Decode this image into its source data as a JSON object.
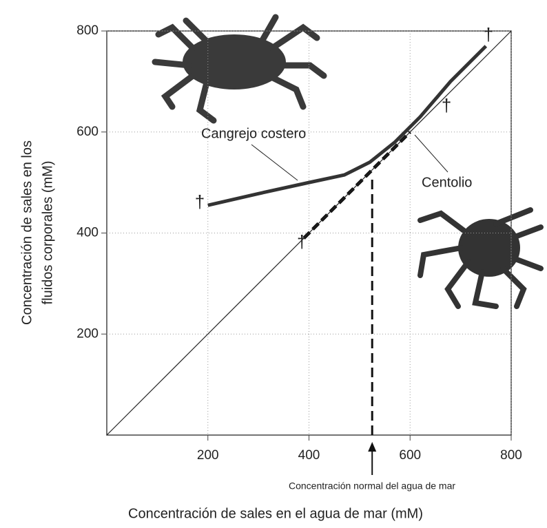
{
  "chart_data": {
    "type": "line",
    "xlabel": "Concentración de sales en el agua de mar (mM)",
    "ylabel": [
      "Concentración de sales en los",
      "fluidos corporales (mM)"
    ],
    "xlim": [
      0,
      800
    ],
    "ylim": [
      0,
      800
    ],
    "xticks": [
      200,
      400,
      600,
      800
    ],
    "yticks": [
      200,
      400,
      600,
      800
    ],
    "grid": true,
    "series": [
      {
        "name": "Cangrejo costero",
        "color": "#333333",
        "style": "solid",
        "width": 5,
        "x": [
          200,
          300,
          400,
          470,
          520,
          570,
          620,
          680,
          750
        ],
        "values": [
          455,
          478,
          500,
          515,
          540,
          580,
          630,
          700,
          770
        ]
      },
      {
        "name": "Centolio",
        "color": "#111111",
        "style": "dashed",
        "width": 5,
        "x": [
          390,
          600
        ],
        "values": [
          390,
          600
        ]
      },
      {
        "color": "#222222",
        "style": "solid",
        "width": 1.2,
        "x": [
          0,
          800
        ],
        "values": [
          0,
          800
        ]
      }
    ],
    "markers": [
      {
        "label": "†",
        "x": 184,
        "y": 459
      },
      {
        "label": "†",
        "x": 386,
        "y": 380
      },
      {
        "label": "†",
        "x": 672,
        "y": 650
      },
      {
        "label": "†",
        "x": 755,
        "y": 790
      }
    ],
    "normal_line": {
      "x": 525,
      "y": 513,
      "label": "Concentración normal del agua de mar"
    }
  }
}
